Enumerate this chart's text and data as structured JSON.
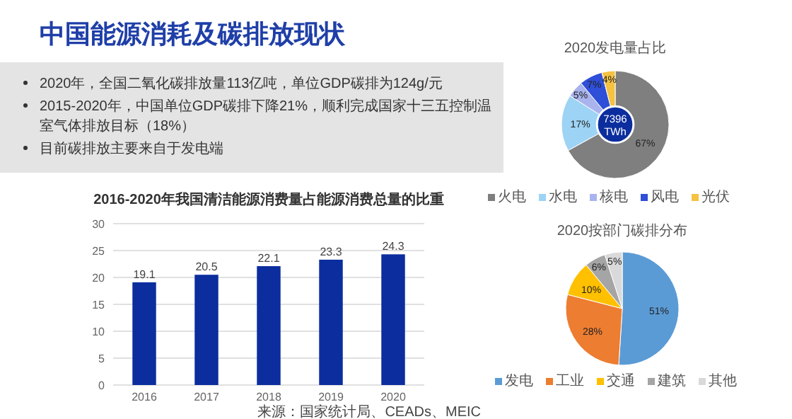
{
  "chart_data": [
    {
      "type": "other",
      "title": "中国能源消耗及碳排放现状",
      "annotations": [
        "2020年，全国二氧化碳排放量113亿吨，单位GDP碳排为124g/元",
        "2015-2020年，中国单位GDP碳排下降21%，顺利完成国家十三五控制温室气体排放目标（18%）",
        "目前碳排放主要来自于发电端"
      ]
    },
    {
      "type": "bar",
      "title": "2016-2020年我国清洁能源消费量占能源消费总量的比重",
      "categories": [
        "2016",
        "2017",
        "2018",
        "2019",
        "2020"
      ],
      "values": [
        19.1,
        20.5,
        22.1,
        23.3,
        24.3
      ],
      "color": "#0b2d9e",
      "ylim": [
        0,
        30
      ],
      "yticks": [
        0,
        5,
        10,
        15,
        20,
        25,
        30
      ],
      "grid": "y",
      "data_labels": true,
      "annotations": [
        "来源：国家统计局、CEADs、MEIC"
      ]
    },
    {
      "type": "donut",
      "title": "2020发电量占比",
      "categories": [
        "火电",
        "水电",
        "核电",
        "风电",
        "光伏"
      ],
      "values": [
        67,
        17,
        5,
        7,
        4
      ],
      "value_labels": [
        "67%",
        "17%",
        "5%",
        "7%",
        "4%"
      ],
      "colors": [
        "#7f7f7f",
        "#9dd3f5",
        "#a9b4ee",
        "#2f4fd8",
        "#f5c242"
      ],
      "legend": "bottom",
      "annotations": [
        "7396 TWh"
      ]
    },
    {
      "type": "pie",
      "title": "2020按部门碳排分布",
      "categories": [
        "发电",
        "工业",
        "交通",
        "建筑",
        "其他"
      ],
      "values": [
        51,
        28,
        10,
        6,
        5
      ],
      "value_labels": [
        "51%",
        "28%",
        "10%",
        "6%",
        "5%"
      ],
      "colors": [
        "#5b9bd5",
        "#ed7d31",
        "#ffc000",
        "#a5a5a5",
        "#d9d9d9"
      ],
      "legend": "bottom"
    }
  ]
}
